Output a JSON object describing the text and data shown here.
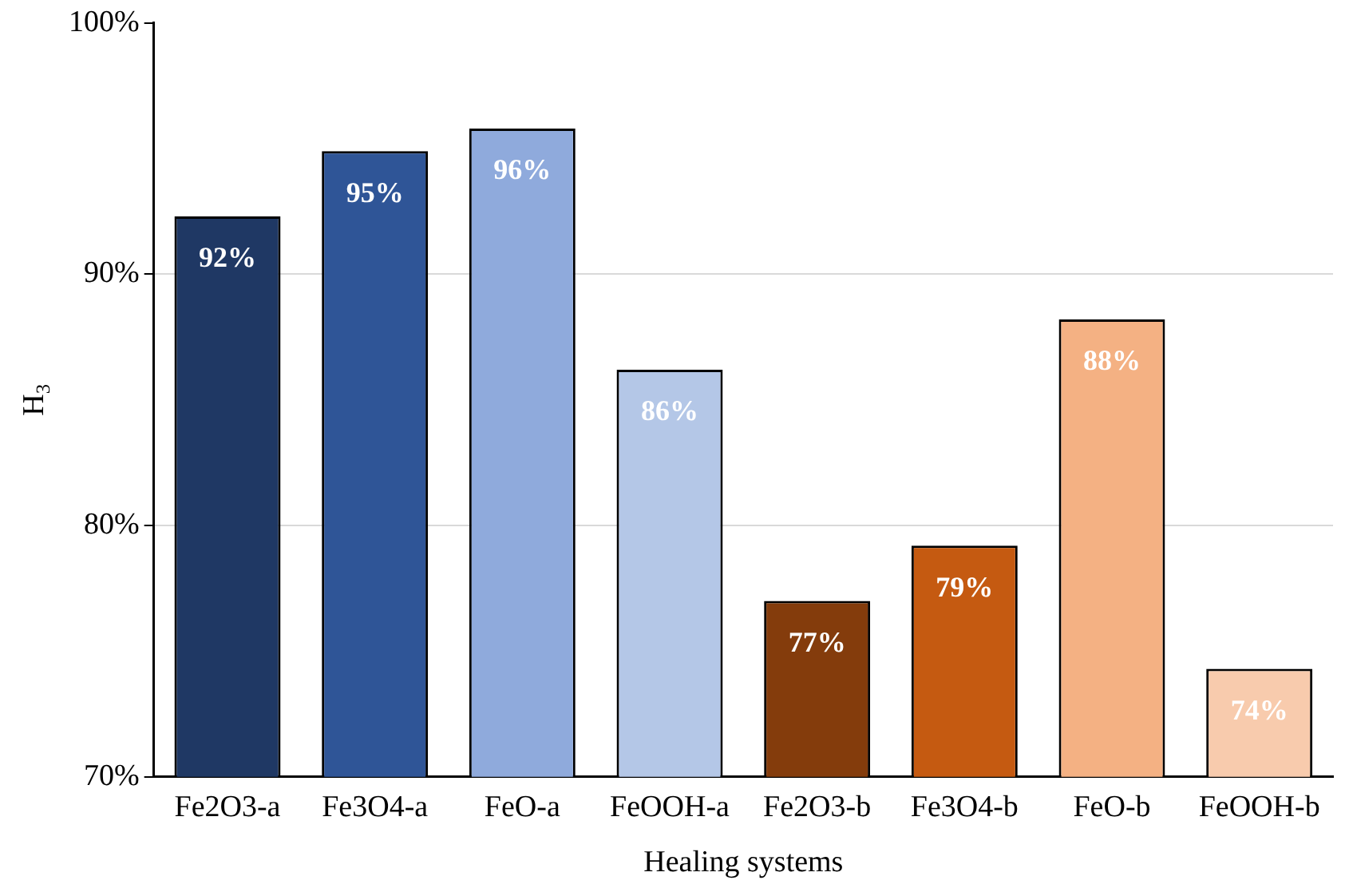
{
  "chart_data": {
    "type": "bar",
    "xlabel": "Healing systems",
    "ylabel": "H$_{3}$",
    "categories": [
      "Fe2O3-a",
      "Fe3O4-a",
      "FeO-a",
      "FeOOH-a",
      "Fe2O3-b",
      "Fe3O4-b",
      "FeO-b",
      "FeOOH-b"
    ],
    "values": [
      92.3,
      94.9,
      95.8,
      86.2,
      77.0,
      79.2,
      88.2,
      74.3
    ],
    "value_labels": [
      "92%",
      "95%",
      "96%",
      "86%",
      "77%",
      "79%",
      "88%",
      "74%"
    ],
    "colors": [
      "#1f3864",
      "#2f5597",
      "#8faadc",
      "#b4c7e7",
      "#843c0c",
      "#c55a11",
      "#f4b183",
      "#f8cbad"
    ],
    "ylim": [
      70,
      100
    ],
    "yticks": [
      {
        "value": 70,
        "label": "70%"
      },
      {
        "value": 80,
        "label": "80%"
      },
      {
        "value": 90,
        "label": "90%"
      },
      {
        "value": 100,
        "label": "100%"
      }
    ],
    "grid": "y",
    "legend": false
  }
}
